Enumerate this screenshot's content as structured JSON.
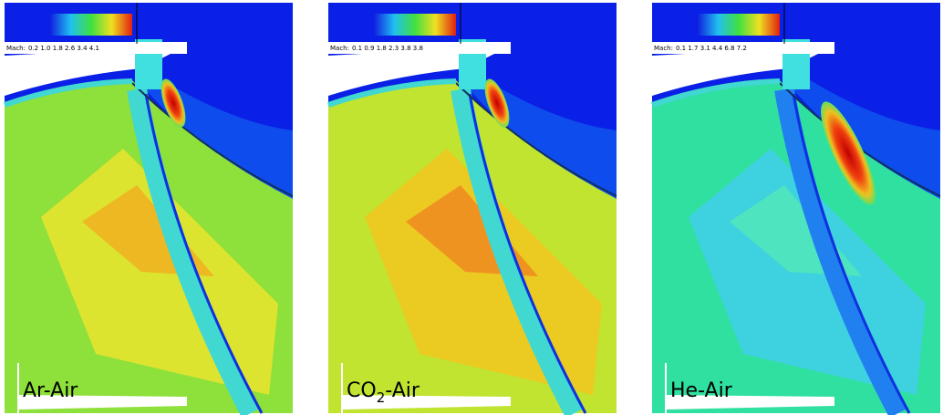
{
  "panels": [
    {
      "colorbar": {
        "title": "Mach:",
        "ticks": "0.2 1.0 1.8 2.6 3.4 4.1"
      },
      "label": {
        "main": "Ar-Air"
      }
    },
    {
      "colorbar": {
        "title": "Mach:",
        "ticks": "0.1 0.9 1.8 2.3 3.8 3.8"
      },
      "label": {
        "main": "CO",
        "sub": "2",
        "rest": "-Air"
      }
    },
    {
      "colorbar": {
        "title": "Mach:",
        "ticks": "0.1 1.7 3.1 4.4 6.8 7.2"
      },
      "label": {
        "main": "He-Air"
      }
    }
  ]
}
